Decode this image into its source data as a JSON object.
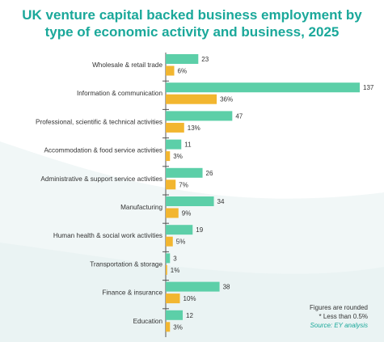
{
  "chart_data": {
    "type": "bar",
    "orientation": "horizontal",
    "title_lines": [
      "UK venture capital backed business employment by",
      "type of economic activity and business, 2025"
    ],
    "categories": [
      "Wholesale & retail trade",
      "Information & communication",
      "Professional, scientific & technical activities",
      "Accommodation & food service activities",
      "Administrative & support service activities",
      "Manufacturing",
      "Human health & social work activities",
      "Transportation & storage",
      "Finance & insurance",
      "Education"
    ],
    "series": [
      {
        "color": "#5ccfa8",
        "values": [
          23,
          137,
          47,
          11,
          26,
          34,
          19,
          3,
          38,
          12
        ],
        "labels": [
          "23",
          "137",
          "47",
          "11",
          "26",
          "34",
          "19",
          "3",
          "38",
          "12"
        ]
      },
      {
        "color": "#f2b630",
        "values": [
          6,
          36,
          13,
          3,
          7,
          9,
          5,
          1,
          10,
          3
        ],
        "labels": [
          "6%",
          "36%",
          "13%",
          "3%",
          "7%",
          "9%",
          "5%",
          "1%",
          "10%",
          "3%"
        ]
      }
    ],
    "legend": "none",
    "grid": false
  },
  "notes": {
    "rounded": "Figures are rounded",
    "less_than": "* Less than 0.5%",
    "source": "Source: EY analysis"
  },
  "colors": {
    "title": "#1aa89a",
    "axis": "#555555",
    "background_swoosh": "#eef5f5"
  }
}
